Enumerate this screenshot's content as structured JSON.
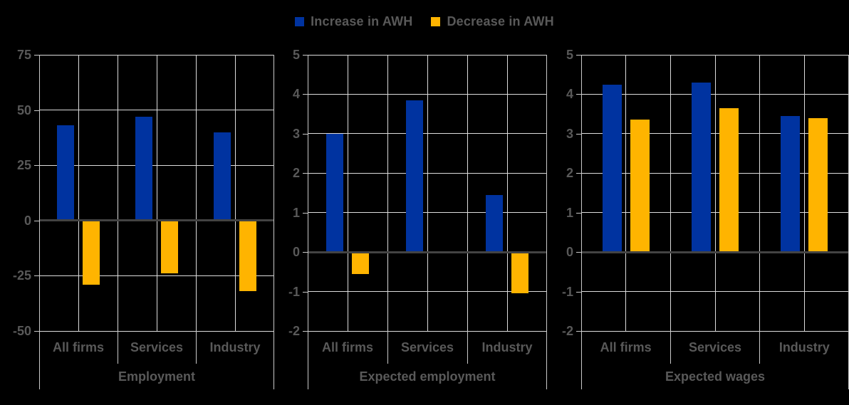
{
  "colors": {
    "increase": "#0033A0",
    "decrease": "#FFB400",
    "background": "#000000",
    "grid": "#DCDCDC",
    "axis": "#C9C9C9",
    "zero_axis": "#434343",
    "text": "#595959"
  },
  "legend": {
    "position": "top-center",
    "items": [
      {
        "label": "Increase in AWH",
        "series": "increase"
      },
      {
        "label": "Decrease in AWH",
        "series": "decrease"
      }
    ]
  },
  "chart_data": [
    {
      "type": "bar",
      "title": "Employment",
      "categories": [
        "All firms",
        "Services",
        "Industry"
      ],
      "series": [
        {
          "name": "Increase in AWH",
          "color_key": "increase",
          "values": [
            43,
            47,
            40
          ]
        },
        {
          "name": "Decrease in AWH",
          "color_key": "decrease",
          "values": [
            -29,
            -24,
            -32
          ]
        }
      ],
      "ylim": [
        -50,
        75
      ],
      "yticks": [
        75,
        50,
        25,
        0,
        -25,
        -50
      ],
      "grid": true,
      "legend_position": "top"
    },
    {
      "type": "bar",
      "title": "Expected employment",
      "categories": [
        "All firms",
        "Services",
        "Industry"
      ],
      "series": [
        {
          "name": "Increase in AWH",
          "color_key": "increase",
          "values": [
            3.0,
            3.85,
            1.45
          ]
        },
        {
          "name": "Decrease in AWH",
          "color_key": "decrease",
          "values": [
            -0.55,
            0,
            -1.05
          ]
        }
      ],
      "ylim": [
        -2,
        5
      ],
      "yticks": [
        5,
        4,
        3,
        2,
        1,
        0,
        -1,
        -2
      ],
      "grid": true,
      "legend_position": "top"
    },
    {
      "type": "bar",
      "title": "Expected wages",
      "categories": [
        "All firms",
        "Services",
        "Industry"
      ],
      "series": [
        {
          "name": "Increase in AWH",
          "color_key": "increase",
          "values": [
            4.25,
            4.3,
            3.45
          ]
        },
        {
          "name": "Decrease in AWH",
          "color_key": "decrease",
          "values": [
            3.35,
            3.65,
            3.4
          ]
        }
      ],
      "ylim": [
        -2,
        5
      ],
      "yticks": [
        5,
        4,
        3,
        2,
        1,
        0,
        -1,
        -2
      ],
      "grid": true,
      "legend_position": "top"
    }
  ]
}
